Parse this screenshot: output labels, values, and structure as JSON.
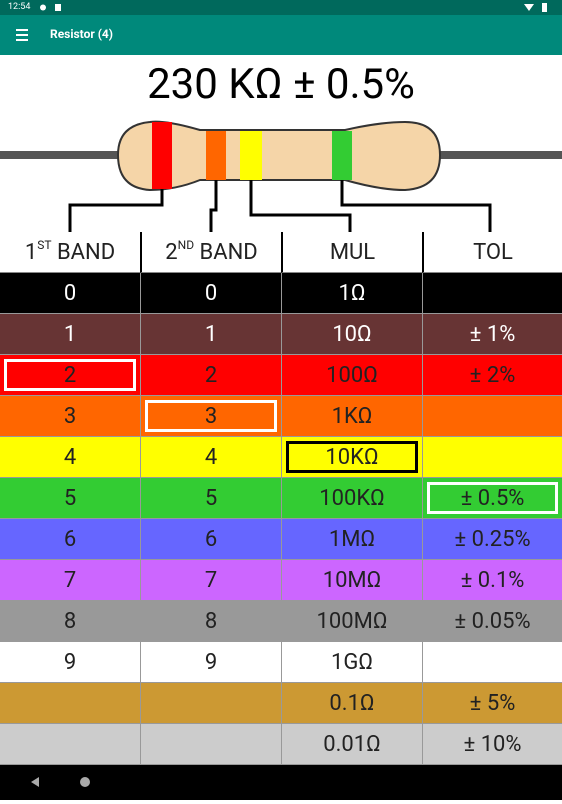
{
  "status_bar": {
    "time": "12:54"
  },
  "app_bar": {
    "title": "Resistor (4)"
  },
  "result": "230 KΩ ± 0.5%",
  "table": {
    "headers": [
      {
        "main": "1",
        "sup": "ST",
        "rest": " BAND"
      },
      {
        "main": "2",
        "sup": "ND",
        "rest": " BAND"
      },
      {
        "main": "MUL"
      },
      {
        "main": "TOL"
      }
    ],
    "rows": [
      [
        "0",
        "0",
        "1Ω",
        null
      ],
      [
        "1",
        "1",
        "10Ω",
        "± 1%"
      ],
      [
        "2",
        "2",
        "100Ω",
        "± 2%"
      ],
      [
        "3",
        "3",
        "1KΩ",
        null
      ],
      [
        "4",
        "4",
        "10KΩ",
        null
      ],
      [
        "5",
        "5",
        "100KΩ",
        "± 0.5%"
      ],
      [
        "6",
        "6",
        "1MΩ",
        "± 0.25%"
      ],
      [
        "7",
        "7",
        "10MΩ",
        "± 0.1%"
      ],
      [
        "8",
        "8",
        "100MΩ",
        "± 0.05%"
      ],
      [
        "9",
        "9",
        "1GΩ",
        null
      ],
      [
        null,
        null,
        "0.1Ω",
        "± 5%"
      ],
      [
        null,
        null,
        "0.01Ω",
        "± 10%"
      ]
    ]
  }
}
